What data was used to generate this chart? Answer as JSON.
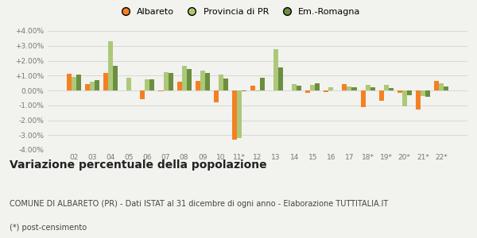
{
  "categories": [
    "02",
    "03",
    "04",
    "05",
    "06",
    "07",
    "08",
    "09",
    "10",
    "11*",
    "12",
    "13",
    "14",
    "15",
    "16",
    "17",
    "18*",
    "19*",
    "20*",
    "21*",
    "22*"
  ],
  "albareto": [
    1.1,
    0.45,
    1.2,
    -0.02,
    -0.6,
    -0.05,
    0.6,
    0.65,
    -0.8,
    -3.3,
    0.3,
    -0.02,
    0.0,
    -0.15,
    -0.1,
    0.45,
    -1.1,
    -0.7,
    -0.15,
    -1.3,
    0.65
  ],
  "provincia_pr": [
    0.9,
    0.6,
    3.3,
    0.85,
    0.75,
    1.25,
    1.65,
    1.35,
    1.05,
    -3.2,
    -0.05,
    2.75,
    0.45,
    0.4,
    0.2,
    0.25,
    0.4,
    0.35,
    -1.05,
    -0.35,
    0.5
  ],
  "emilia_romagna": [
    1.05,
    0.7,
    1.65,
    0.0,
    0.75,
    1.2,
    1.45,
    1.2,
    0.8,
    -0.05,
    0.85,
    1.55,
    0.3,
    0.5,
    0.0,
    0.2,
    0.2,
    0.15,
    -0.3,
    -0.4,
    0.25
  ],
  "color_albareto": "#f48024",
  "color_provincia": "#adc878",
  "color_emilia": "#6b8f3e",
  "title": "Variazione percentuale della popolazione",
  "subtitle": "COMUNE DI ALBARETO (PR) - Dati ISTAT al 31 dicembre di ogni anno - Elaborazione TUTTITALIA.IT",
  "footnote": "(*) post-censimento",
  "legend_labels": [
    "Albareto",
    "Provincia di PR",
    "Em.-Romagna"
  ],
  "ylim": [
    -4.0,
    4.0
  ],
  "yticks": [
    -4.0,
    -3.0,
    -2.0,
    -1.0,
    0.0,
    1.0,
    2.0,
    3.0,
    4.0
  ],
  "ytick_labels": [
    "-4.00%",
    "-3.00%",
    "-2.00%",
    "-1.00%",
    "0.00%",
    "+1.00%",
    "+2.00%",
    "+3.00%",
    "+4.00%"
  ],
  "bg_color": "#f2f2ee",
  "title_fontsize": 10,
  "subtitle_fontsize": 7,
  "footnote_fontsize": 7,
  "tick_fontsize": 6.5,
  "legend_fontsize": 8
}
